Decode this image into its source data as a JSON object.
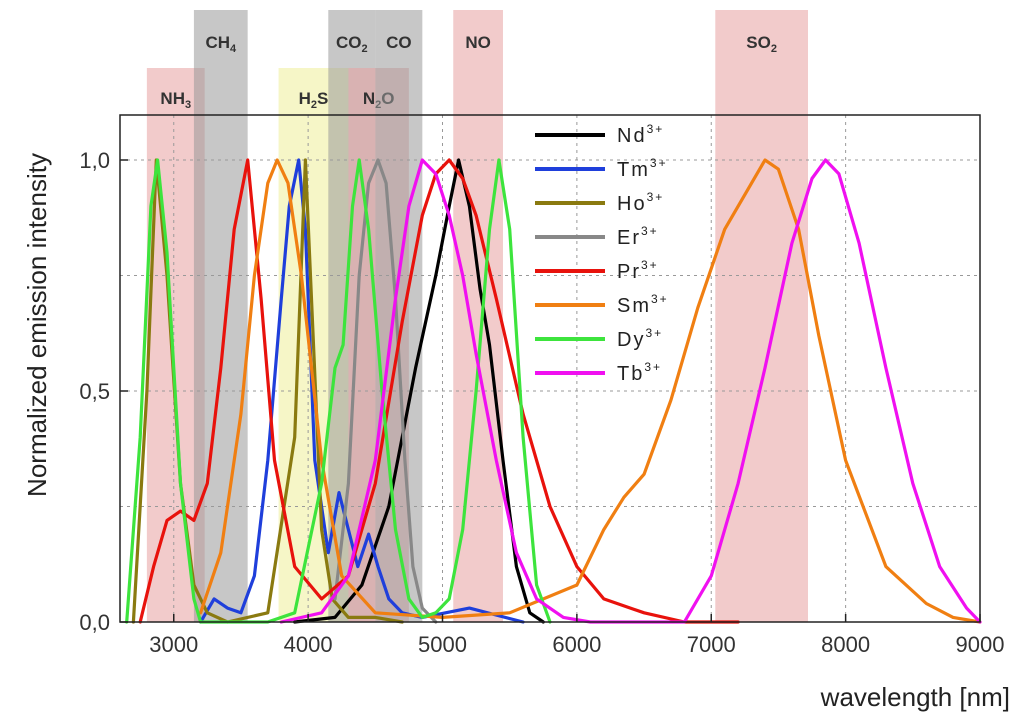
{
  "chart_data": {
    "type": "line",
    "xlabel": "wavelength [nm]",
    "ylabel": "Normalized emission intensity",
    "xlim": [
      2600,
      9000
    ],
    "ylim": [
      0,
      1.1
    ],
    "x_ticks": [
      "3000",
      "4000",
      "5000",
      "6000",
      "7000",
      "8000",
      "9000"
    ],
    "x_tick_values": [
      3000,
      4000,
      5000,
      6000,
      7000,
      8000,
      9000
    ],
    "y_ticks": [
      "0,0",
      "0,5",
      "1,0"
    ],
    "y_tick_values": [
      0,
      0.5,
      1.0
    ],
    "grid": true,
    "legend_position": "top-center",
    "bands": [
      {
        "name": "NH",
        "sub": "3",
        "range": [
          2800,
          3230
        ],
        "color": "#e8a0a0",
        "row": 2
      },
      {
        "name": "CH",
        "sub": "4",
        "range": [
          3150,
          3550
        ],
        "color": "#999999",
        "row": 1
      },
      {
        "name": "H",
        "sub": "2",
        "suffix": "S",
        "range": [
          3780,
          4300
        ],
        "color": "#eeee99",
        "row": 2
      },
      {
        "name": "CO",
        "sub": "2",
        "range": [
          4150,
          4500
        ],
        "color": "#999999",
        "row": 1
      },
      {
        "name": "N",
        "sub": "2",
        "suffix": "O",
        "range": [
          4300,
          4750
        ],
        "color": "#e8a0a0",
        "row": 2
      },
      {
        "name": "CO",
        "sub": "",
        "range": [
          4500,
          4850
        ],
        "color": "#999999",
        "row": 1
      },
      {
        "name": "NO",
        "sub": "",
        "range": [
          5080,
          5450
        ],
        "color": "#e8a0a0",
        "row": 1
      },
      {
        "name": "SO",
        "sub": "2",
        "range": [
          7030,
          7720
        ],
        "color": "#e8a0a0",
        "row": 1
      }
    ],
    "series": [
      {
        "name": "Nd",
        "sup": "3+",
        "color": "#000000",
        "x": [
          3900,
          4200,
          4400,
          4600,
          4800,
          4950,
          5050,
          5120,
          5200,
          5280,
          5350,
          5450,
          5550,
          5650,
          5750
        ],
        "y": [
          0.0,
          0.01,
          0.08,
          0.25,
          0.55,
          0.75,
          0.9,
          1.0,
          0.9,
          0.72,
          0.6,
          0.35,
          0.12,
          0.02,
          0.0
        ]
      },
      {
        "name": "Tm",
        "sup": "3+",
        "color": "#1f3fdb",
        "x": [
          3200,
          3300,
          3400,
          3500,
          3600,
          3700,
          3800,
          3860,
          3930,
          3980,
          4050,
          4150,
          4230,
          4300,
          4370,
          4450,
          4520,
          4600,
          4700,
          4850,
          5200,
          5600
        ],
        "y": [
          0.0,
          0.05,
          0.03,
          0.02,
          0.1,
          0.35,
          0.7,
          0.9,
          1.0,
          0.85,
          0.35,
          0.15,
          0.28,
          0.2,
          0.12,
          0.19,
          0.12,
          0.05,
          0.02,
          0.01,
          0.03,
          0.0
        ]
      },
      {
        "name": "Ho",
        "sup": "3+",
        "color": "#8a7a10",
        "x": [
          2700,
          2800,
          2870,
          2950,
          3050,
          3150,
          3250,
          3400,
          3700,
          3900,
          3980,
          4040,
          4100,
          4180,
          4300,
          4500,
          4700
        ],
        "y": [
          0.0,
          0.5,
          1.0,
          0.75,
          0.3,
          0.08,
          0.02,
          0.0,
          0.02,
          0.4,
          1.0,
          0.6,
          0.2,
          0.05,
          0.01,
          0.01,
          0.0
        ]
      },
      {
        "name": "Er",
        "sup": "3+",
        "color": "#888888",
        "x": [
          4200,
          4300,
          4380,
          4450,
          4520,
          4580,
          4650,
          4720,
          4780,
          4850,
          4950
        ],
        "y": [
          0.05,
          0.3,
          0.75,
          0.95,
          1.0,
          0.95,
          0.7,
          0.35,
          0.12,
          0.03,
          0.0
        ]
      },
      {
        "name": "Pr",
        "sup": "3+",
        "color": "#e8120c",
        "x": [
          2750,
          2850,
          2950,
          3050,
          3150,
          3250,
          3350,
          3450,
          3550,
          3650,
          3750,
          3900,
          4100,
          4300,
          4500,
          4700,
          4850,
          4950,
          5050,
          5150,
          5250,
          5400,
          5600,
          5800,
          6000,
          6200,
          6500,
          6800,
          7200
        ],
        "y": [
          0.0,
          0.12,
          0.22,
          0.24,
          0.22,
          0.3,
          0.55,
          0.85,
          1.0,
          0.7,
          0.35,
          0.12,
          0.05,
          0.1,
          0.3,
          0.65,
          0.88,
          0.97,
          1.0,
          0.96,
          0.88,
          0.7,
          0.45,
          0.25,
          0.12,
          0.05,
          0.02,
          0.0,
          0.0
        ]
      },
      {
        "name": "Sm",
        "sup": "3+",
        "color": "#f07f12",
        "x": [
          3200,
          3350,
          3500,
          3600,
          3700,
          3770,
          3850,
          3950,
          4100,
          4250,
          4500,
          5000,
          5500,
          6000,
          6200,
          6350,
          6500,
          6700,
          6900,
          7100,
          7300,
          7400,
          7500,
          7650,
          7800,
          8000,
          8300,
          8600,
          8800,
          9000
        ],
        "y": [
          0.02,
          0.15,
          0.45,
          0.75,
          0.95,
          1.0,
          0.95,
          0.75,
          0.35,
          0.1,
          0.02,
          0.01,
          0.02,
          0.08,
          0.2,
          0.27,
          0.32,
          0.48,
          0.68,
          0.85,
          0.95,
          1.0,
          0.98,
          0.85,
          0.62,
          0.35,
          0.12,
          0.04,
          0.01,
          0.0
        ]
      },
      {
        "name": "Dy",
        "sup": "3+",
        "color": "#3de43d",
        "x": [
          2650,
          2750,
          2830,
          2880,
          2950,
          3050,
          3150,
          3200,
          3700,
          3900,
          4100,
          4200,
          4260,
          4330,
          4380,
          4450,
          4550,
          4650,
          4750,
          4850,
          4950,
          5050,
          5150,
          5250,
          5350,
          5420,
          5500,
          5600,
          5700,
          5800
        ],
        "y": [
          0.0,
          0.4,
          0.9,
          1.0,
          0.8,
          0.3,
          0.05,
          0.0,
          0.0,
          0.02,
          0.3,
          0.55,
          0.6,
          0.9,
          1.0,
          0.85,
          0.5,
          0.2,
          0.05,
          0.01,
          0.02,
          0.05,
          0.2,
          0.5,
          0.85,
          1.0,
          0.85,
          0.4,
          0.08,
          0.0
        ]
      },
      {
        "name": "Tb",
        "sup": "3+",
        "color": "#f010f0",
        "x": [
          3800,
          4100,
          4300,
          4500,
          4650,
          4750,
          4850,
          4950,
          5050,
          5150,
          5250,
          5400,
          5550,
          5700,
          5900,
          6100,
          6800,
          7000,
          7200,
          7400,
          7600,
          7750,
          7850,
          7950,
          8100,
          8300,
          8500,
          8700,
          8900,
          9000
        ],
        "y": [
          0.0,
          0.02,
          0.1,
          0.35,
          0.7,
          0.9,
          1.0,
          0.97,
          0.88,
          0.75,
          0.58,
          0.35,
          0.15,
          0.05,
          0.01,
          0.0,
          0.0,
          0.1,
          0.3,
          0.55,
          0.82,
          0.96,
          1.0,
          0.97,
          0.82,
          0.55,
          0.3,
          0.12,
          0.03,
          0.0
        ]
      }
    ]
  }
}
